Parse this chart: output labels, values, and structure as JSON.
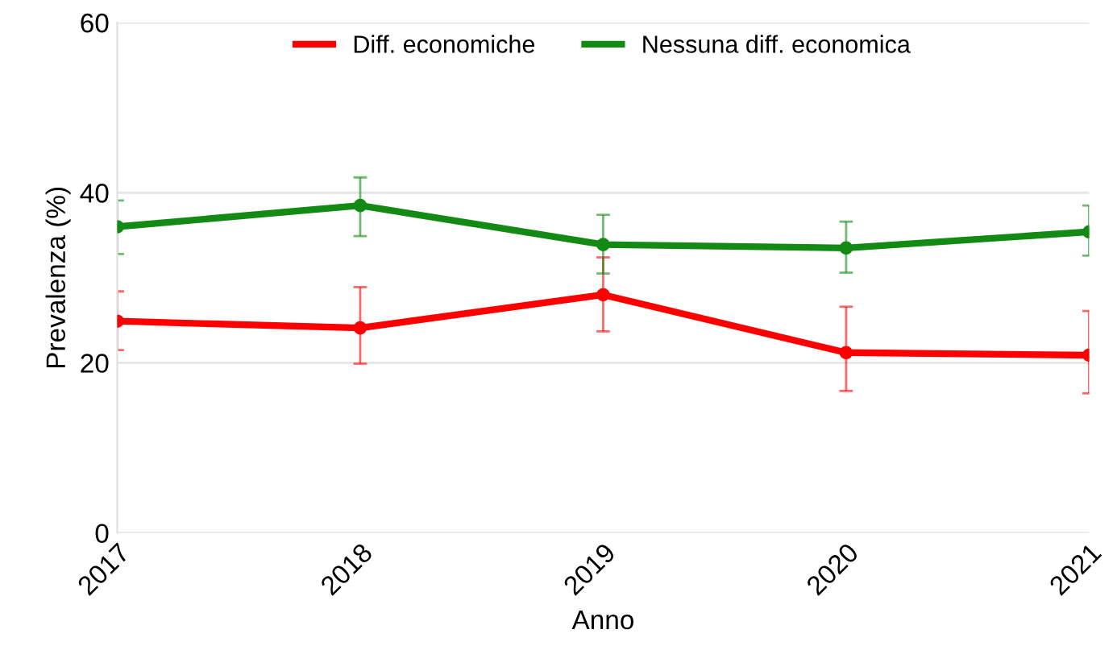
{
  "chart_data": {
    "type": "line",
    "xlabel": "Anno",
    "ylabel": "Prevalenza (%)",
    "x": [
      2017,
      2018,
      2019,
      2020,
      2021
    ],
    "xlim": [
      2017,
      2021
    ],
    "xticks": [
      2017,
      2018,
      2019,
      2020,
      2021
    ],
    "ylim": [
      0,
      60
    ],
    "yticks": [
      0,
      20,
      40,
      60
    ],
    "grid": "y",
    "legend": "top",
    "marker": "circle",
    "line_style": "solid",
    "series": [
      {
        "name": "Diff. economiche",
        "color": "#ff0000",
        "values": [
          24.9,
          24.1,
          28.0,
          21.2,
          20.9
        ],
        "errors": [
          [
            21.5,
            28.4
          ],
          [
            19.9,
            28.9
          ],
          [
            23.7,
            32.4
          ],
          [
            16.7,
            26.6
          ],
          [
            16.4,
            26.1
          ]
        ]
      },
      {
        "name": "Nessuna diff. economica",
        "color": "#138a13",
        "values": [
          36.0,
          38.5,
          33.9,
          33.5,
          35.4
        ],
        "errors": [
          [
            32.8,
            39.1
          ],
          [
            34.9,
            41.8
          ],
          [
            30.5,
            37.4
          ],
          [
            30.6,
            36.6
          ],
          [
            32.6,
            38.5
          ]
        ]
      }
    ]
  }
}
